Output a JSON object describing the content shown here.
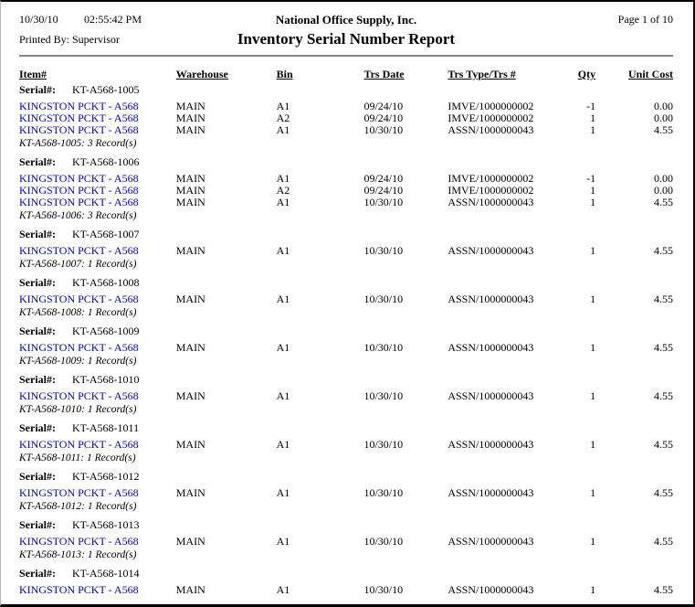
{
  "page": {
    "date": "10/30/10",
    "time": "02:55:42 PM",
    "printed_by_label": "Printed By: Supervisor",
    "company": "National Office Supply, Inc.",
    "title": "Inventory Serial Number Report",
    "page_label": "Page 1 of 10"
  },
  "columns": [
    "Item#",
    "Warehouse",
    "Bin",
    "Trs Date",
    "Trs Type/Trs #",
    "Qty",
    "Unit Cost"
  ],
  "serial_label": "Serial#:",
  "colors": {
    "item_link": "#0000CC",
    "divider": "#888888"
  },
  "groups": [
    {
      "serial": "KT-A568-1005",
      "rows": [
        {
          "item": "KINGSTON PCKT - A568",
          "warehouse": "MAIN",
          "bin": "A1",
          "trs_date": "09/24/10",
          "trs_type": "IMVE/1000000002",
          "qty": "-1",
          "unit_cost": "0.00"
        },
        {
          "item": "KINGSTON PCKT - A568",
          "warehouse": "MAIN",
          "bin": "A2",
          "trs_date": "09/24/10",
          "trs_type": "IMVE/1000000002",
          "qty": "1",
          "unit_cost": "0.00"
        },
        {
          "item": "KINGSTON PCKT - A568",
          "warehouse": "MAIN",
          "bin": "A1",
          "trs_date": "10/30/10",
          "trs_type": "ASSN/1000000043",
          "qty": "1",
          "unit_cost": "4.55"
        }
      ],
      "summary": "KT-A568-1005: 3 Record(s)"
    },
    {
      "serial": "KT-A568-1006",
      "rows": [
        {
          "item": "KINGSTON PCKT - A568",
          "warehouse": "MAIN",
          "bin": "A1",
          "trs_date": "09/24/10",
          "trs_type": "IMVE/1000000002",
          "qty": "-1",
          "unit_cost": "0.00"
        },
        {
          "item": "KINGSTON PCKT - A568",
          "warehouse": "MAIN",
          "bin": "A2",
          "trs_date": "09/24/10",
          "trs_type": "IMVE/1000000002",
          "qty": "1",
          "unit_cost": "0.00"
        },
        {
          "item": "KINGSTON PCKT - A568",
          "warehouse": "MAIN",
          "bin": "A1",
          "trs_date": "10/30/10",
          "trs_type": "ASSN/1000000043",
          "qty": "1",
          "unit_cost": "4.55"
        }
      ],
      "summary": "KT-A568-1006: 3 Record(s)"
    },
    {
      "serial": "KT-A568-1007",
      "rows": [
        {
          "item": "KINGSTON PCKT - A568",
          "warehouse": "MAIN",
          "bin": "A1",
          "trs_date": "10/30/10",
          "trs_type": "ASSN/1000000043",
          "qty": "1",
          "unit_cost": "4.55"
        }
      ],
      "summary": "KT-A568-1007: 1 Record(s)"
    },
    {
      "serial": "KT-A568-1008",
      "rows": [
        {
          "item": "KINGSTON PCKT - A568",
          "warehouse": "MAIN",
          "bin": "A1",
          "trs_date": "10/30/10",
          "trs_type": "ASSN/1000000043",
          "qty": "1",
          "unit_cost": "4.55"
        }
      ],
      "summary": "KT-A568-1008: 1 Record(s)"
    },
    {
      "serial": "KT-A568-1009",
      "rows": [
        {
          "item": "KINGSTON PCKT - A568",
          "warehouse": "MAIN",
          "bin": "A1",
          "trs_date": "10/30/10",
          "trs_type": "ASSN/1000000043",
          "qty": "1",
          "unit_cost": "4.55"
        }
      ],
      "summary": "KT-A568-1009: 1 Record(s)"
    },
    {
      "serial": "KT-A568-1010",
      "rows": [
        {
          "item": "KINGSTON PCKT - A568",
          "warehouse": "MAIN",
          "bin": "A1",
          "trs_date": "10/30/10",
          "trs_type": "ASSN/1000000043",
          "qty": "1",
          "unit_cost": "4.55"
        }
      ],
      "summary": "KT-A568-1010: 1 Record(s)"
    },
    {
      "serial": "KT-A568-1011",
      "rows": [
        {
          "item": "KINGSTON PCKT - A568",
          "warehouse": "MAIN",
          "bin": "A1",
          "trs_date": "10/30/10",
          "trs_type": "ASSN/1000000043",
          "qty": "1",
          "unit_cost": "4.55"
        }
      ],
      "summary": "KT-A568-1011: 1 Record(s)"
    },
    {
      "serial": "KT-A568-1012",
      "rows": [
        {
          "item": "KINGSTON PCKT - A568",
          "warehouse": "MAIN",
          "bin": "A1",
          "trs_date": "10/30/10",
          "trs_type": "ASSN/1000000043",
          "qty": "1",
          "unit_cost": "4.55"
        }
      ],
      "summary": "KT-A568-1012: 1 Record(s)"
    },
    {
      "serial": "KT-A568-1013",
      "rows": [
        {
          "item": "KINGSTON PCKT - A568",
          "warehouse": "MAIN",
          "bin": "A1",
          "trs_date": "10/30/10",
          "trs_type": "ASSN/1000000043",
          "qty": "1",
          "unit_cost": "4.55"
        }
      ],
      "summary": "KT-A568-1013: 1 Record(s)"
    },
    {
      "serial": "KT-A568-1014",
      "rows": [
        {
          "item": "KINGSTON PCKT - A568",
          "warehouse": "MAIN",
          "bin": "A1",
          "trs_date": "10/30/10",
          "trs_type": "ASSN/1000000043",
          "qty": "1",
          "unit_cost": "4.55"
        }
      ]
    }
  ]
}
